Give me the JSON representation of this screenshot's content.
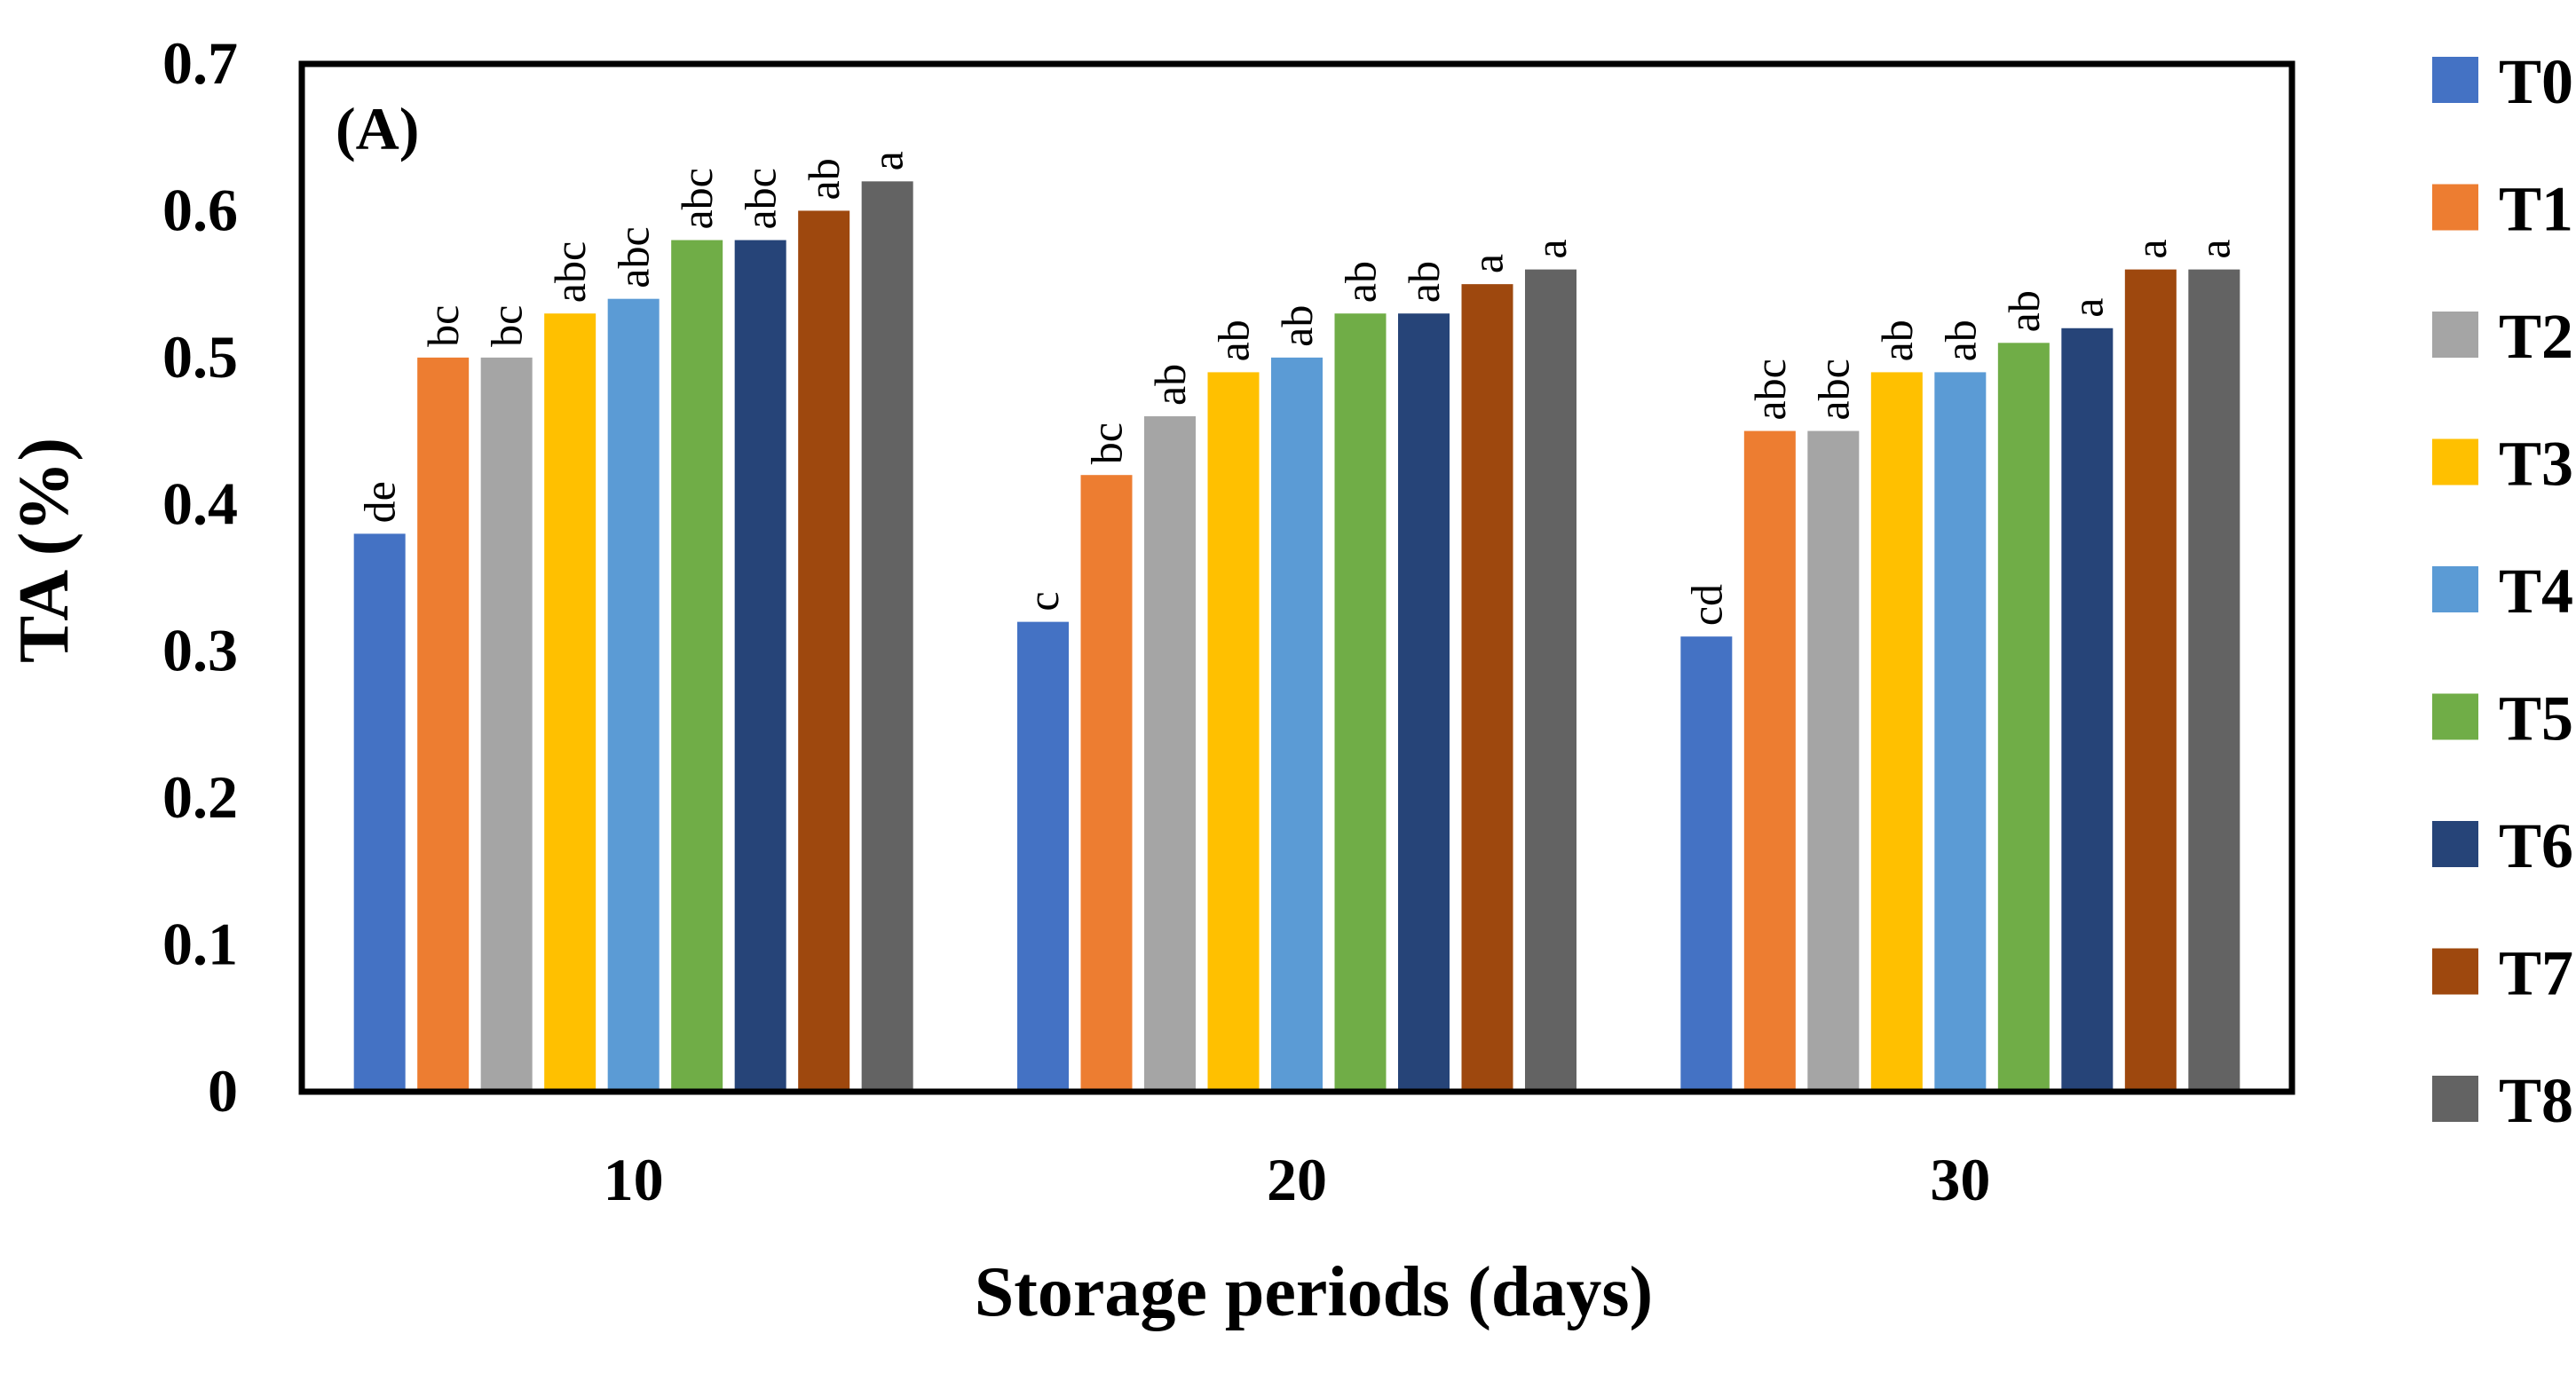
{
  "chart_data": {
    "type": "bar",
    "panel_label": "(A)",
    "xlabel": "Storage periods (days)",
    "ylabel": "TA (%)",
    "ylim": [
      0,
      0.7
    ],
    "yticks": [
      "0",
      "0.1",
      "0.2",
      "0.3",
      "0.4",
      "0.5",
      "0.6",
      "0.7"
    ],
    "categories": [
      "10",
      "20",
      "30"
    ],
    "legend_position": "right",
    "series": [
      {
        "name": "T0",
        "color": "#4472C4",
        "values": [
          0.38,
          0.32,
          0.31
        ],
        "labels": [
          "de",
          "c",
          "cd"
        ]
      },
      {
        "name": "T1",
        "color": "#ED7D31",
        "values": [
          0.5,
          0.42,
          0.45
        ],
        "labels": [
          "bc",
          "bc",
          "abc"
        ]
      },
      {
        "name": "T2",
        "color": "#A5A5A5",
        "values": [
          0.5,
          0.46,
          0.45
        ],
        "labels": [
          "bc",
          "ab",
          "abc"
        ]
      },
      {
        "name": "T3",
        "color": "#FFC000",
        "values": [
          0.53,
          0.49,
          0.49
        ],
        "labels": [
          "abc",
          "ab",
          "ab"
        ]
      },
      {
        "name": "T4",
        "color": "#5B9BD5",
        "values": [
          0.54,
          0.5,
          0.49
        ],
        "labels": [
          "abc",
          "ab",
          "ab"
        ]
      },
      {
        "name": "T5",
        "color": "#70AD47",
        "values": [
          0.58,
          0.53,
          0.51
        ],
        "labels": [
          "abc",
          "ab",
          "ab"
        ]
      },
      {
        "name": "T6",
        "color": "#264478",
        "values": [
          0.58,
          0.53,
          0.52
        ],
        "labels": [
          "abc",
          "ab",
          "a"
        ]
      },
      {
        "name": "T7",
        "color": "#9E480E",
        "values": [
          0.6,
          0.55,
          0.56
        ],
        "labels": [
          "ab",
          "a",
          "a"
        ]
      },
      {
        "name": "T8",
        "color": "#636363",
        "values": [
          0.62,
          0.56,
          0.56
        ],
        "labels": [
          "a",
          "a",
          "a"
        ]
      }
    ]
  }
}
